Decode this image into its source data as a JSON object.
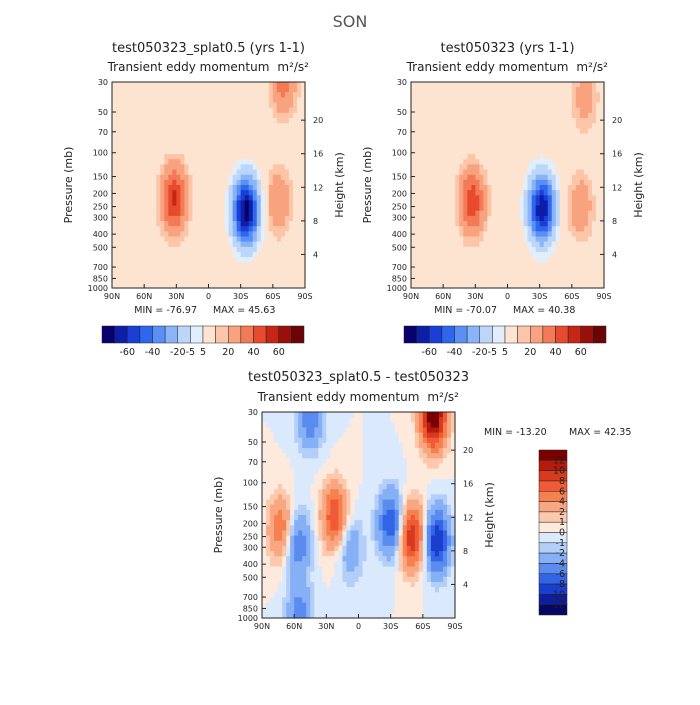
{
  "figure_title": "SON",
  "units": "m²/s²",
  "chart_data": [
    {
      "type": "heatmap",
      "id": "p1",
      "title": "test050323_splat0.5 (yrs 1-1)",
      "subtitle": "Transient eddy momentum",
      "units": "m²/s²",
      "xlabel": "",
      "ylabel": "Pressure (mb)",
      "y2label": "Height (km)",
      "x_ticks": [
        "90N",
        "60N",
        "30N",
        "0",
        "30S",
        "60S",
        "90S"
      ],
      "y_ticks": [
        "30",
        "50",
        "70",
        "100",
        "150",
        "200",
        "250",
        "300",
        "400",
        "500",
        "700",
        "850",
        "1000"
      ],
      "y2_ticks": [
        "20",
        "16",
        "12",
        "8",
        "4"
      ],
      "min_label": "MIN = -76.97",
      "max_label": "MAX =  45.63",
      "min": -76.97,
      "max": 45.63,
      "colorbar": {
        "labels": [
          "-60",
          "-40",
          "-20",
          "-5",
          "5",
          "20",
          "40",
          "60"
        ],
        "colors": [
          "#08006b",
          "#0d1ea8",
          "#1a3fd6",
          "#2f66ee",
          "#5a90f5",
          "#8ab4f8",
          "#bcd6fa",
          "#e1eefc",
          "#fde4d0",
          "#fcc5a7",
          "#f9a27f",
          "#f47a57",
          "#e84a2d",
          "#c82615",
          "#9b0f0a",
          "#6b0404"
        ]
      },
      "features": [
        {
          "lat": 32,
          "p": 220,
          "amp": 42
        },
        {
          "lat": -35,
          "p": 270,
          "amp": -75
        },
        {
          "lat": -65,
          "p": 230,
          "amp": 20
        },
        {
          "lat": -70,
          "p": 30,
          "amp": 25
        }
      ]
    },
    {
      "type": "heatmap",
      "id": "p2",
      "title": "test050323 (yrs 1-1)",
      "subtitle": "Transient eddy momentum",
      "units": "m²/s²",
      "xlabel": "",
      "ylabel": "Pressure (mb)",
      "y2label": "Height (km)",
      "x_ticks": [
        "90N",
        "60N",
        "30N",
        "0",
        "30S",
        "60S",
        "90S"
      ],
      "y_ticks": [
        "30",
        "50",
        "70",
        "100",
        "150",
        "200",
        "250",
        "300",
        "400",
        "500",
        "700",
        "850",
        "1000"
      ],
      "y2_ticks": [
        "20",
        "16",
        "12",
        "8",
        "4"
      ],
      "min_label": "MIN = -70.07",
      "max_label": "MAX =  40.38",
      "min": -70.07,
      "max": 40.38,
      "colorbar": {
        "labels": [
          "-60",
          "-40",
          "-20",
          "-5",
          "5",
          "20",
          "40",
          "60"
        ],
        "colors": [
          "#08006b",
          "#0d1ea8",
          "#1a3fd6",
          "#2f66ee",
          "#5a90f5",
          "#8ab4f8",
          "#bcd6fa",
          "#e1eefc",
          "#fde4d0",
          "#fcc5a7",
          "#f9a27f",
          "#f47a57",
          "#e84a2d",
          "#c82615",
          "#9b0f0a",
          "#6b0404"
        ]
      },
      "features": [
        {
          "lat": 33,
          "p": 230,
          "amp": 38
        },
        {
          "lat": -32,
          "p": 260,
          "amp": -68
        },
        {
          "lat": -68,
          "p": 250,
          "amp": 18
        },
        {
          "lat": -72,
          "p": 40,
          "amp": 15
        }
      ]
    },
    {
      "type": "heatmap",
      "id": "p3",
      "title": "test050323_splat0.5 - test050323",
      "subtitle": "Transient eddy momentum",
      "units": "m²/s²",
      "xlabel": "",
      "ylabel": "Pressure (mb)",
      "y2label": "Height (km)",
      "x_ticks": [
        "90N",
        "60N",
        "30N",
        "0",
        "30S",
        "60S",
        "90S"
      ],
      "y_ticks": [
        "30",
        "50",
        "70",
        "100",
        "150",
        "200",
        "250",
        "300",
        "400",
        "500",
        "700",
        "850",
        "1000"
      ],
      "y2_ticks": [
        "20",
        "16",
        "12",
        "8",
        "4"
      ],
      "min_label": "MIN = -13.20",
      "max_label": "MAX =  42.35",
      "min": -13.2,
      "max": 42.35,
      "colorbar": {
        "labels": [
          "12",
          "10",
          "8",
          "6",
          "4",
          "2",
          "1",
          "0",
          "-1",
          "-2",
          "-4",
          "-6",
          "-8",
          "-10",
          "-12"
        ],
        "colors": [
          "#7a0000",
          "#b51a0d",
          "#d73a1f",
          "#f05a35",
          "#f7804f",
          "#f9a783",
          "#fcc9ad",
          "#fdeadd",
          "#dbe9fc",
          "#b3cff9",
          "#86b0f6",
          "#5a8cf0",
          "#3264e6",
          "#1a3fcf",
          "#0d1f9e",
          "#070866"
        ]
      },
      "features": [
        {
          "lat": 45,
          "p": 32,
          "amp": -6
        },
        {
          "lat": 72,
          "p": 220,
          "amp": 6
        },
        {
          "lat": 57,
          "p": 280,
          "amp": -6
        },
        {
          "lat": 22,
          "p": 180,
          "amp": 8
        },
        {
          "lat": 8,
          "p": 300,
          "amp": -4
        },
        {
          "lat": -30,
          "p": 200,
          "amp": -8
        },
        {
          "lat": -50,
          "p": 250,
          "amp": 10
        },
        {
          "lat": -73,
          "p": 270,
          "amp": -10
        },
        {
          "lat": -70,
          "p": 32,
          "amp": 14
        },
        {
          "lat": 55,
          "p": 950,
          "amp": -5
        }
      ]
    }
  ]
}
